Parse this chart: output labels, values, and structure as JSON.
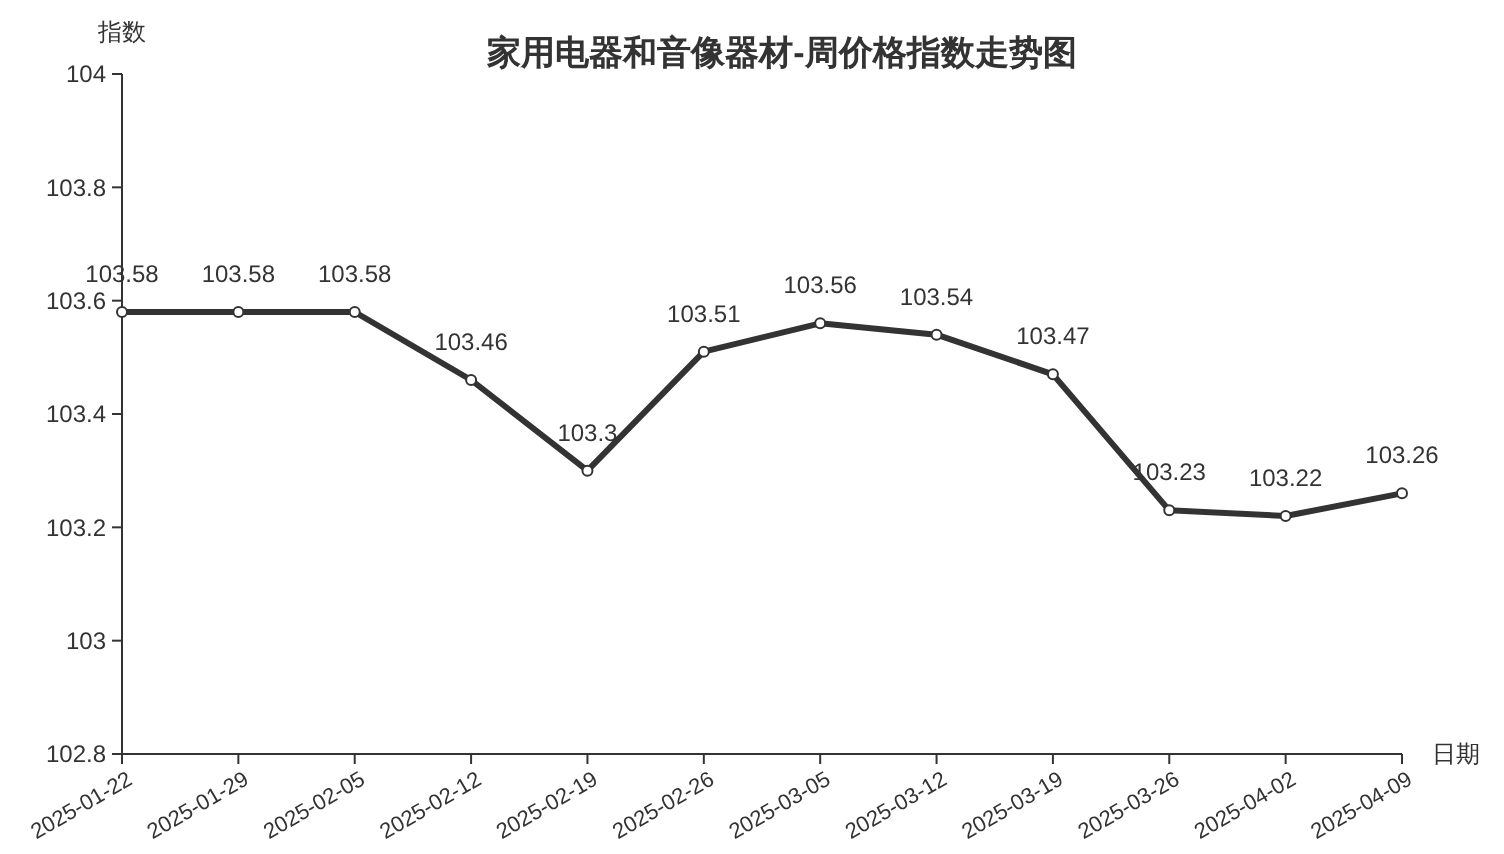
{
  "chart_data": {
    "type": "line",
    "title": "家用电器和音像器材-周价格指数走势图",
    "xlabel": "日期",
    "ylabel": "指数",
    "categories": [
      "2025-01-22",
      "2025-01-29",
      "2025-02-05",
      "2025-02-12",
      "2025-02-19",
      "2025-02-26",
      "2025-03-05",
      "2025-03-12",
      "2025-03-19",
      "2025-03-26",
      "2025-04-02",
      "2025-04-09"
    ],
    "series": [
      {
        "color": "#333333",
        "values": [
          103.58,
          103.58,
          103.58,
          103.46,
          103.3,
          103.51,
          103.56,
          103.54,
          103.47,
          103.23,
          103.22,
          103.26
        ]
      }
    ],
    "ylim": [
      102.8,
      104
    ],
    "yticks": [
      102.8,
      103,
      103.2,
      103.4,
      103.6,
      103.8,
      104
    ],
    "data_labels": true,
    "marker": "circle",
    "line_style": "solid"
  }
}
